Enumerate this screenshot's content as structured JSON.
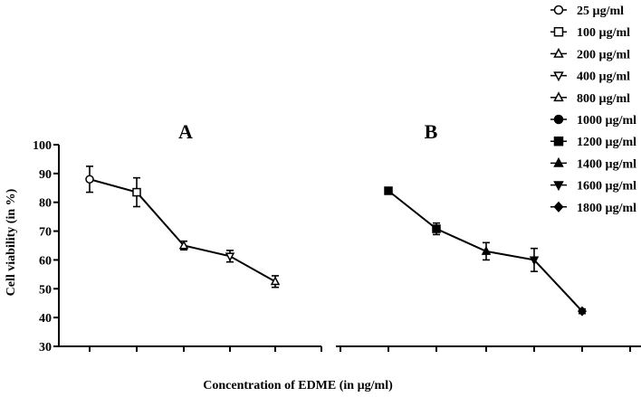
{
  "chart_data": {
    "type": "line",
    "ylabel": "Cell viability (in %)",
    "xlabel": "Concentration of EDME (in µg/ml)",
    "ylim": [
      30,
      100
    ],
    "yticks": [
      "30",
      "40",
      "50",
      "60",
      "70",
      "80",
      "90",
      "100"
    ],
    "grid": false,
    "legend_position": "top-right",
    "legend": [
      {
        "label": "25 µg/ml",
        "marker": "circle-open"
      },
      {
        "label": "100 µg/ml",
        "marker": "square-open"
      },
      {
        "label": "200 µg/ml",
        "marker": "triangle-up-open"
      },
      {
        "label": "400 µg/ml",
        "marker": "triangle-down-open"
      },
      {
        "label": "800 µg/ml",
        "marker": "triangle-up-open"
      },
      {
        "label": "1000  µg/ml",
        "marker": "circle-filled"
      },
      {
        "label": "1200 µg/ml",
        "marker": "square-filled"
      },
      {
        "label": "1400 µg/ml",
        "marker": "triangle-up-filled"
      },
      {
        "label": "1600 µg/ml",
        "marker": "triangle-down-filled"
      },
      {
        "label": "1800 µg/ml",
        "marker": "diamond-filled"
      }
    ],
    "panels": [
      {
        "title": "A",
        "points": [
          {
            "y": 88,
            "err": 4.5,
            "marker": "circle-open"
          },
          {
            "y": 83.5,
            "err": 5,
            "marker": "square-open"
          },
          {
            "y": 65,
            "err": 1.5,
            "marker": "triangle-up-open"
          },
          {
            "y": 61.3,
            "err": 2,
            "marker": "triangle-down-open"
          },
          {
            "y": 52.5,
            "err": 2,
            "marker": "triangle-up-open"
          }
        ]
      },
      {
        "title": "B",
        "points": [
          {
            "y": 84,
            "err": 1,
            "marker": "square-filled"
          },
          {
            "y": 70.8,
            "err": 2,
            "marker": "square-filled"
          },
          {
            "y": 63,
            "err": 3,
            "marker": "triangle-up-filled"
          },
          {
            "y": 60,
            "err": 4,
            "marker": "triangle-down-filled"
          },
          {
            "y": 42.2,
            "err": 0.8,
            "marker": "diamond-filled"
          }
        ]
      }
    ]
  }
}
